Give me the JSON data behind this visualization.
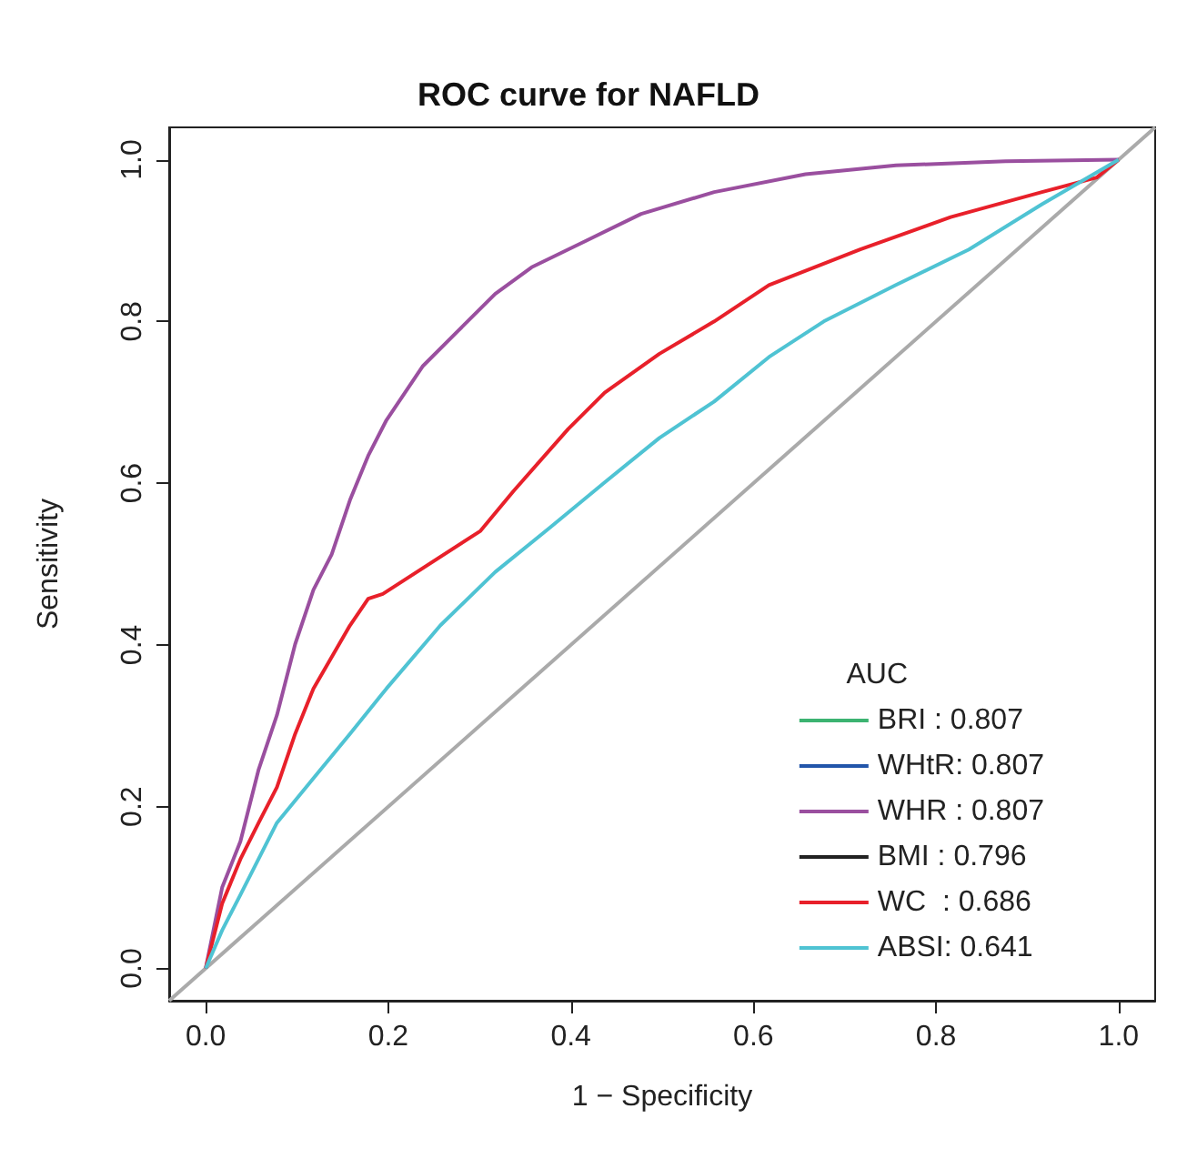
{
  "chart_data": {
    "type": "line",
    "title": "ROC curve for NAFLD",
    "xlabel": "1 − Specificity",
    "ylabel": "Sensitivity",
    "legend_title": "AUC",
    "xlim": [
      -0.04,
      1.04
    ],
    "ylim": [
      -0.04,
      1.04
    ],
    "xticks": [
      {
        "value": 0,
        "label": "0.0"
      },
      0.2,
      0.4,
      0.6,
      0.8,
      {
        "value": 1,
        "label": "1.0"
      }
    ],
    "yticks": [
      {
        "value": 0,
        "label": "0.0"
      },
      0.2,
      0.4,
      0.6,
      0.8,
      {
        "value": 1,
        "label": "1.0"
      }
    ],
    "grid": false,
    "legend": "bottom right",
    "marker": "none",
    "line_style": "solid",
    "series": [
      {
        "name": "BRI : 0.807",
        "color": "#3cb371"
      },
      {
        "name": "WHtR: 0.807",
        "color": "#2255aa"
      },
      {
        "name": "WHR : 0.807",
        "color": "#9a4f9f",
        "x": [
          0,
          0.018,
          0.038,
          0.058,
          0.078,
          0.098,
          0.118,
          0.138,
          0.158,
          0.178,
          0.198,
          0.238,
          0.277,
          0.317,
          0.357,
          0.417,
          0.477,
          0.557,
          0.657,
          0.756,
          0.876,
          1
        ],
        "values": [
          0,
          0.1,
          0.157,
          0.246,
          0.313,
          0.401,
          0.468,
          0.512,
          0.579,
          0.634,
          0.678,
          0.745,
          0.789,
          0.834,
          0.867,
          0.9,
          0.933,
          0.96,
          0.982,
          0.993,
          0.998,
          1
        ]
      },
      {
        "name": "BMI : 0.796",
        "color": "#222222"
      },
      {
        "name": "WC  : 0.686",
        "color": "#e8202a",
        "x": [
          0,
          0.018,
          0.038,
          0.058,
          0.078,
          0.098,
          0.118,
          0.158,
          0.178,
          0.194,
          0.301,
          0.337,
          0.397,
          0.437,
          0.497,
          0.557,
          0.617,
          0.717,
          0.816,
          0.916,
          0.976,
          1
        ],
        "values": [
          0,
          0.08,
          0.135,
          0.18,
          0.224,
          0.29,
          0.346,
          0.424,
          0.457,
          0.463,
          0.541,
          0.59,
          0.667,
          0.712,
          0.76,
          0.8,
          0.845,
          0.889,
          0.929,
          0.96,
          0.978,
          1
        ]
      },
      {
        "name": "ABSI: 0.641",
        "color": "#4fc3d3",
        "x": [
          0,
          0.018,
          0.038,
          0.078,
          0.118,
          0.158,
          0.198,
          0.257,
          0.317,
          0.377,
          0.437,
          0.497,
          0.557,
          0.617,
          0.677,
          0.756,
          0.836,
          0.916,
          1
        ],
        "values": [
          0,
          0.047,
          0.091,
          0.18,
          0.235,
          0.29,
          0.346,
          0.424,
          0.49,
          0.545,
          0.601,
          0.656,
          0.701,
          0.756,
          0.8,
          0.845,
          0.889,
          0.945,
          1
        ]
      },
      {
        "color": "#aaaaaa",
        "x": [
          -0.04,
          1.04
        ],
        "values": [
          -0.04,
          1.04
        ]
      }
    ]
  }
}
